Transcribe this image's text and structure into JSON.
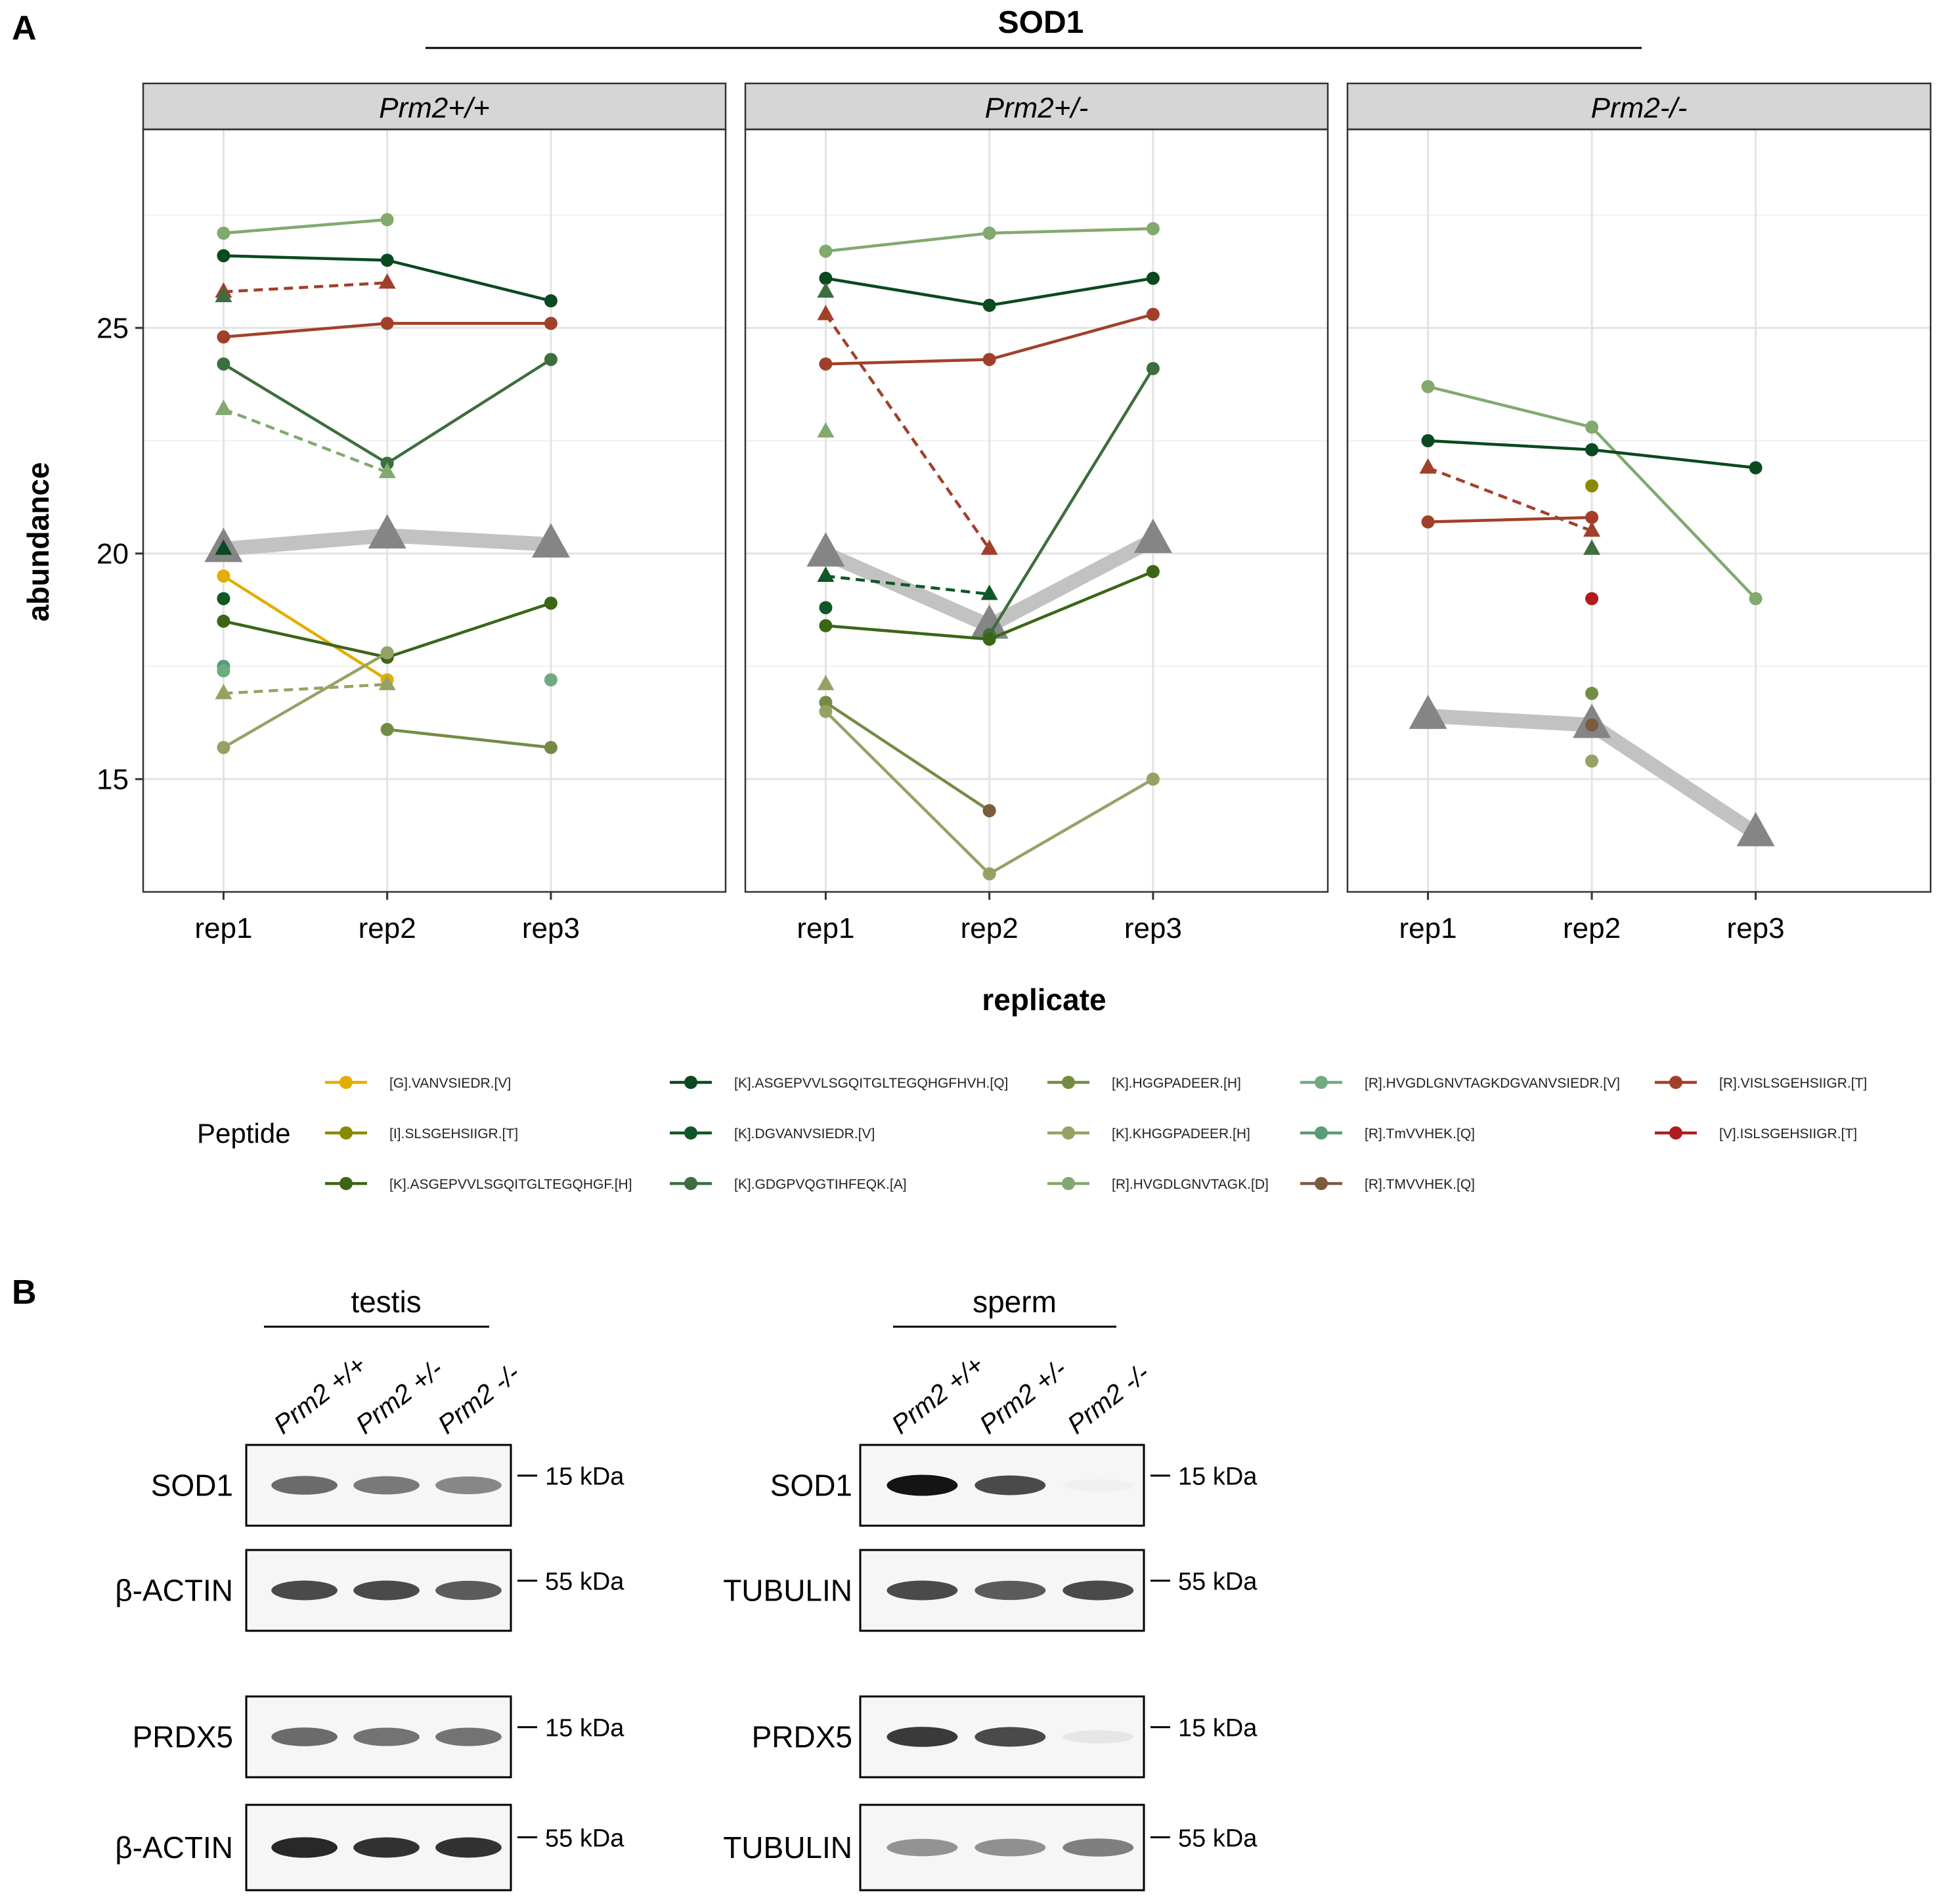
{
  "panelA": {
    "label": "A",
    "protein_title": "SOD1"
  },
  "chart_data": {
    "type": "line",
    "title": "SOD1",
    "xlabel": "replicate",
    "ylabel": "abundance",
    "x_categories": [
      "rep1",
      "rep2",
      "rep3"
    ],
    "ylim": [
      12.5,
      29.4
    ],
    "y_ticks": [
      15,
      20,
      25
    ],
    "grid": true,
    "facets": [
      "Prm2+/+",
      "Prm2+/-",
      "Prm2-/-"
    ],
    "legend_title": "Peptide",
    "legend_position": "bottom",
    "legend": [
      {
        "key": "P1",
        "label": "[G].VANVSIEDR.[V]",
        "color": "#E2AE00"
      },
      {
        "key": "P2",
        "label": "[I].SLSGEHSIIGR.[T]",
        "color": "#8A8A00"
      },
      {
        "key": "P3",
        "label": "[K].ASGEPVVLSGQITGLTEGQHGF.[H]",
        "color": "#3B6616"
      },
      {
        "key": "P4",
        "label": "[K].ASGEPVVLSGQITGLTEGQHGFHVH.[Q]",
        "color": "#0A4A1E"
      },
      {
        "key": "P5",
        "label": "[K].DGVANVSIEDR.[V]",
        "color": "#0F5726"
      },
      {
        "key": "P6",
        "label": "[K].GDGPVQGTIHFEQK.[A]",
        "color": "#3D6E3F"
      },
      {
        "key": "P7",
        "label": "[K].HGGPADEER.[H]",
        "color": "#748B45"
      },
      {
        "key": "P8",
        "label": "[K].KHGGPADEER.[H]",
        "color": "#96A264"
      },
      {
        "key": "P9",
        "label": "[R].HVGDLGNVTAGK.[D]",
        "color": "#82A96E"
      },
      {
        "key": "P10",
        "label": "[R].HVGDLGNVTAGKDGVANVSIEDR.[V]",
        "color": "#72AA80"
      },
      {
        "key": "P11",
        "label": "[R].TmVVHEK.[Q]",
        "color": "#5C9B78"
      },
      {
        "key": "P12",
        "label": "[R].TMVVHEK.[Q]",
        "color": "#7A5C3E"
      },
      {
        "key": "P13",
        "label": "[R].VISLSGEHSIIGR.[T]",
        "color": "#A1402A"
      },
      {
        "key": "P14",
        "label": "[V].ISLSGEHSIIGR.[T]",
        "color": "#B01C1C"
      }
    ],
    "series": [
      {
        "facet": 0,
        "peptide": "P9",
        "values": [
          27.1,
          27.4,
          null
        ],
        "style": "solid",
        "marker": "circle"
      },
      {
        "facet": 0,
        "peptide": "P4",
        "values": [
          26.6,
          26.5,
          25.6
        ],
        "style": "solid",
        "marker": "circle"
      },
      {
        "facet": 0,
        "peptide": "P13",
        "values": [
          25.8,
          26.0,
          null
        ],
        "style": "dashed",
        "marker": "triangle"
      },
      {
        "facet": 0,
        "peptide": "P13",
        "values": [
          24.8,
          25.1,
          25.1
        ],
        "style": "solid",
        "marker": "circle"
      },
      {
        "facet": 0,
        "peptide": "P6",
        "values": [
          24.2,
          22.0,
          24.3
        ],
        "style": "solid",
        "marker": "circle"
      },
      {
        "facet": 0,
        "peptide": "P9",
        "values": [
          23.2,
          21.8,
          null
        ],
        "style": "dashed",
        "marker": "triangle"
      },
      {
        "facet": 0,
        "peptide": "P1",
        "values": [
          19.5,
          17.2,
          null
        ],
        "style": "solid",
        "marker": "circle"
      },
      {
        "facet": 0,
        "peptide": "P3",
        "values": [
          18.5,
          17.7,
          18.9
        ],
        "style": "solid",
        "marker": "circle"
      },
      {
        "facet": 0,
        "peptide": "P8",
        "values": [
          16.9,
          17.1,
          null
        ],
        "style": "dashed",
        "marker": "triangle"
      },
      {
        "facet": 0,
        "peptide": "P8",
        "values": [
          15.7,
          17.8,
          null
        ],
        "style": "solid",
        "marker": "circle"
      },
      {
        "facet": 0,
        "peptide": "P7",
        "values": [
          null,
          16.1,
          15.7
        ],
        "style": "solid",
        "marker": "circle"
      },
      {
        "facet": 1,
        "peptide": "P9",
        "values": [
          26.7,
          27.1,
          27.2
        ],
        "style": "solid",
        "marker": "circle"
      },
      {
        "facet": 1,
        "peptide": "P4",
        "values": [
          26.1,
          25.5,
          26.1
        ],
        "style": "solid",
        "marker": "circle"
      },
      {
        "facet": 1,
        "peptide": "P13",
        "values": [
          25.3,
          20.1,
          null
        ],
        "style": "dashed",
        "marker": "triangle"
      },
      {
        "facet": 1,
        "peptide": "P13",
        "values": [
          24.2,
          24.3,
          25.3
        ],
        "style": "solid",
        "marker": "circle"
      },
      {
        "facet": 1,
        "peptide": "P5",
        "values": [
          19.5,
          19.1,
          null
        ],
        "style": "dashed",
        "marker": "triangle"
      },
      {
        "facet": 1,
        "peptide": "P6",
        "values": [
          null,
          18.2,
          24.1
        ],
        "style": "solid",
        "marker": "circle"
      },
      {
        "facet": 1,
        "peptide": "P3",
        "values": [
          18.4,
          18.1,
          19.6
        ],
        "style": "solid",
        "marker": "circle"
      },
      {
        "facet": 1,
        "peptide": "P7",
        "values": [
          16.7,
          14.3,
          null
        ],
        "style": "solid",
        "marker": "circle"
      },
      {
        "facet": 1,
        "peptide": "P8",
        "values": [
          16.5,
          12.9,
          15.0
        ],
        "style": "solid",
        "marker": "circle"
      },
      {
        "facet": 2,
        "peptide": "P9",
        "values": [
          23.7,
          22.8,
          19.0
        ],
        "style": "solid",
        "marker": "circle"
      },
      {
        "facet": 2,
        "peptide": "P4",
        "values": [
          22.5,
          22.3,
          21.9
        ],
        "style": "solid",
        "marker": "circle"
      },
      {
        "facet": 2,
        "peptide": "P13",
        "values": [
          21.9,
          20.5,
          null
        ],
        "style": "dashed",
        "marker": "triangle"
      },
      {
        "facet": 2,
        "peptide": "P13",
        "values": [
          20.7,
          20.8,
          null
        ],
        "style": "solid",
        "marker": "circle"
      }
    ],
    "points": [
      {
        "facet": 0,
        "peptide": "P6",
        "x": "rep1",
        "y": 25.7,
        "marker": "triangle"
      },
      {
        "facet": 0,
        "peptide": "P4",
        "x": "rep1",
        "y": 20.1,
        "marker": "triangle"
      },
      {
        "facet": 0,
        "peptide": "P5",
        "x": "rep1",
        "y": 19.0,
        "marker": "circle"
      },
      {
        "facet": 0,
        "peptide": "P11",
        "x": "rep1",
        "y": 17.5,
        "marker": "circle"
      },
      {
        "facet": 0,
        "peptide": "P10",
        "x": "rep1",
        "y": 17.4,
        "marker": "circle"
      },
      {
        "facet": 0,
        "peptide": "P10",
        "x": "rep3",
        "y": 17.2,
        "marker": "circle"
      },
      {
        "facet": 1,
        "peptide": "P6",
        "x": "rep1",
        "y": 25.8,
        "marker": "triangle"
      },
      {
        "facet": 1,
        "peptide": "P9",
        "x": "rep1",
        "y": 22.7,
        "marker": "triangle"
      },
      {
        "facet": 1,
        "peptide": "P5",
        "x": "rep1",
        "y": 18.8,
        "marker": "circle"
      },
      {
        "facet": 1,
        "peptide": "P8",
        "x": "rep1",
        "y": 17.1,
        "marker": "triangle"
      },
      {
        "facet": 1,
        "peptide": "P12",
        "x": "rep2",
        "y": 14.3,
        "marker": "circle"
      },
      {
        "facet": 2,
        "peptide": "P2",
        "x": "rep2",
        "y": 21.5,
        "marker": "circle"
      },
      {
        "facet": 2,
        "peptide": "P6",
        "x": "rep2",
        "y": 20.1,
        "marker": "triangle"
      },
      {
        "facet": 2,
        "peptide": "P14",
        "x": "rep2",
        "y": 19.0,
        "marker": "circle"
      },
      {
        "facet": 2,
        "peptide": "P7",
        "x": "rep2",
        "y": 16.9,
        "marker": "circle"
      },
      {
        "facet": 2,
        "peptide": "P12",
        "x": "rep2",
        "y": 16.2,
        "marker": "circle"
      },
      {
        "facet": 2,
        "peptide": "P8",
        "x": "rep2",
        "y": 15.4,
        "marker": "circle"
      }
    ],
    "protein_mean": [
      {
        "facet": 0,
        "values": [
          20.1,
          20.4,
          20.2
        ]
      },
      {
        "facet": 1,
        "values": [
          20.0,
          18.4,
          20.3
        ]
      },
      {
        "facet": 2,
        "values": [
          16.4,
          16.2,
          13.8
        ]
      }
    ]
  },
  "panelB": {
    "label": "B",
    "groups": [
      {
        "title": "testis",
        "lanes": [
          "Prm2 +/+",
          "Prm2 +/-",
          "Prm2 -/-"
        ],
        "blots": [
          {
            "label": "SOD1",
            "kda": "15 kDa",
            "band_intensity": [
              0.75,
              0.7,
              0.65
            ]
          },
          {
            "label": "β-ACTIN",
            "kda": "55 kDa",
            "band_intensity": [
              0.85,
              0.85,
              0.8
            ]
          },
          {
            "label": "PRDX5",
            "kda": "15 kDa",
            "band_intensity": [
              0.75,
              0.72,
              0.72
            ]
          },
          {
            "label": "β-ACTIN",
            "kda": "55 kDa",
            "band_intensity": [
              0.95,
              0.92,
              0.92
            ]
          }
        ]
      },
      {
        "title": "sperm",
        "lanes": [
          "Prm2 +/+",
          "Prm2 +/-",
          "Prm2 -/-"
        ],
        "blots": [
          {
            "label": "SOD1",
            "kda": "15 kDa",
            "band_intensity": [
              1.0,
              0.85,
              0.04
            ]
          },
          {
            "label": "TUBULIN",
            "kda": "55 kDa",
            "band_intensity": [
              0.85,
              0.8,
              0.85
            ]
          },
          {
            "label": "PRDX5",
            "kda": "15 kDa",
            "band_intensity": [
              0.9,
              0.85,
              0.15
            ]
          },
          {
            "label": "TUBULIN",
            "kda": "55 kDa",
            "band_intensity": [
              0.6,
              0.62,
              0.68
            ]
          }
        ]
      }
    ]
  }
}
